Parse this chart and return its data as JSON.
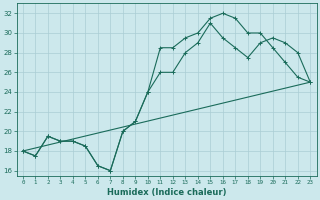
{
  "xlabel": "Humidex (Indice chaleur)",
  "ylabel": "",
  "bg_color": "#cce8ec",
  "grid_color": "#aacdd4",
  "line_color": "#1a6b5a",
  "xlim": [
    -0.5,
    23.5
  ],
  "ylim": [
    15.5,
    33
  ],
  "yticks": [
    16,
    18,
    20,
    22,
    24,
    26,
    28,
    30,
    32
  ],
  "xticks": [
    0,
    1,
    2,
    3,
    4,
    5,
    6,
    7,
    8,
    9,
    10,
    11,
    12,
    13,
    14,
    15,
    16,
    17,
    18,
    19,
    20,
    21,
    22,
    23
  ],
  "line1_x": [
    0,
    1,
    2,
    3,
    4,
    5,
    6,
    7,
    8,
    9,
    10,
    11,
    12,
    13,
    14,
    15,
    16,
    17,
    18,
    19,
    20,
    21,
    22,
    23
  ],
  "line1_y": [
    18,
    17.5,
    19.5,
    19,
    19,
    18.5,
    16.5,
    16,
    20,
    21,
    24,
    28.5,
    28.5,
    29.5,
    30,
    31.5,
    32,
    31.5,
    30,
    30,
    28.5,
    27,
    25.5,
    25
  ],
  "line2_x": [
    0,
    1,
    2,
    3,
    4,
    5,
    6,
    7,
    8,
    9,
    10,
    11,
    12,
    13,
    14,
    15,
    16,
    17,
    18,
    19,
    20,
    21,
    22,
    23
  ],
  "line2_y": [
    18,
    17.5,
    19.5,
    19,
    19,
    18.5,
    16.5,
    16,
    20,
    21,
    24,
    26,
    26,
    28,
    29,
    31,
    29.5,
    28.5,
    27.5,
    29,
    29.5,
    29,
    28,
    25
  ],
  "line3_x": [
    0,
    23
  ],
  "line3_y": [
    18,
    25
  ]
}
